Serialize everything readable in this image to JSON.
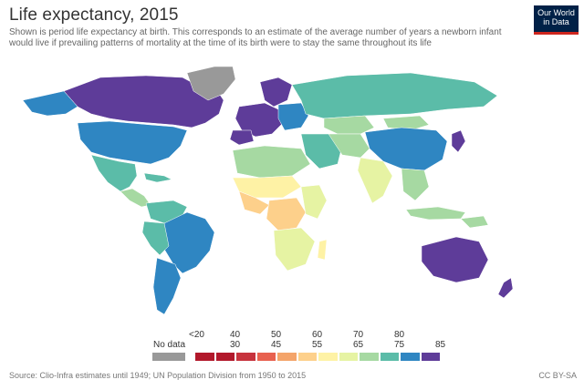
{
  "header": {
    "title": "Life expectancy, 2015",
    "subtitle": "Shown is period life expectancy at birth. This corresponds to an estimate of the average number of years a newborn infant would live if prevailing patterns of mortality at the time of its birth were to stay the same throughout its life"
  },
  "logo": {
    "line1": "Our World",
    "line2": "in Data"
  },
  "legend": {
    "no_data_label": "No data",
    "no_data_color": "#999999",
    "bins": [
      {
        "top": "<20",
        "bottom": "",
        "color": "#b2182b"
      },
      {
        "top": "",
        "bottom": "30",
        "color": "#b2182b"
      },
      {
        "top": "40",
        "bottom": "",
        "color": "#c7333d"
      },
      {
        "top": "",
        "bottom": "45",
        "color": "#e8614f"
      },
      {
        "top": "50",
        "bottom": "",
        "color": "#f4a46a"
      },
      {
        "top": "",
        "bottom": "55",
        "color": "#fdd08b"
      },
      {
        "top": "60",
        "bottom": "",
        "color": "#fef2a5"
      },
      {
        "top": "",
        "bottom": "65",
        "color": "#e6f3a3"
      },
      {
        "top": "70",
        "bottom": "",
        "color": "#a6d9a2"
      },
      {
        "top": "",
        "bottom": "75",
        "color": "#5bbca8"
      },
      {
        "top": "80",
        "bottom": "",
        "color": "#2f86c2"
      },
      {
        "top": "",
        "bottom": "85",
        "color": "#5e3c99"
      }
    ]
  },
  "footer": {
    "source": "Source: Clio-Infra estimates until 1949; UN Population Division from 1950 to 2015",
    "license": "CC BY-SA"
  }
}
